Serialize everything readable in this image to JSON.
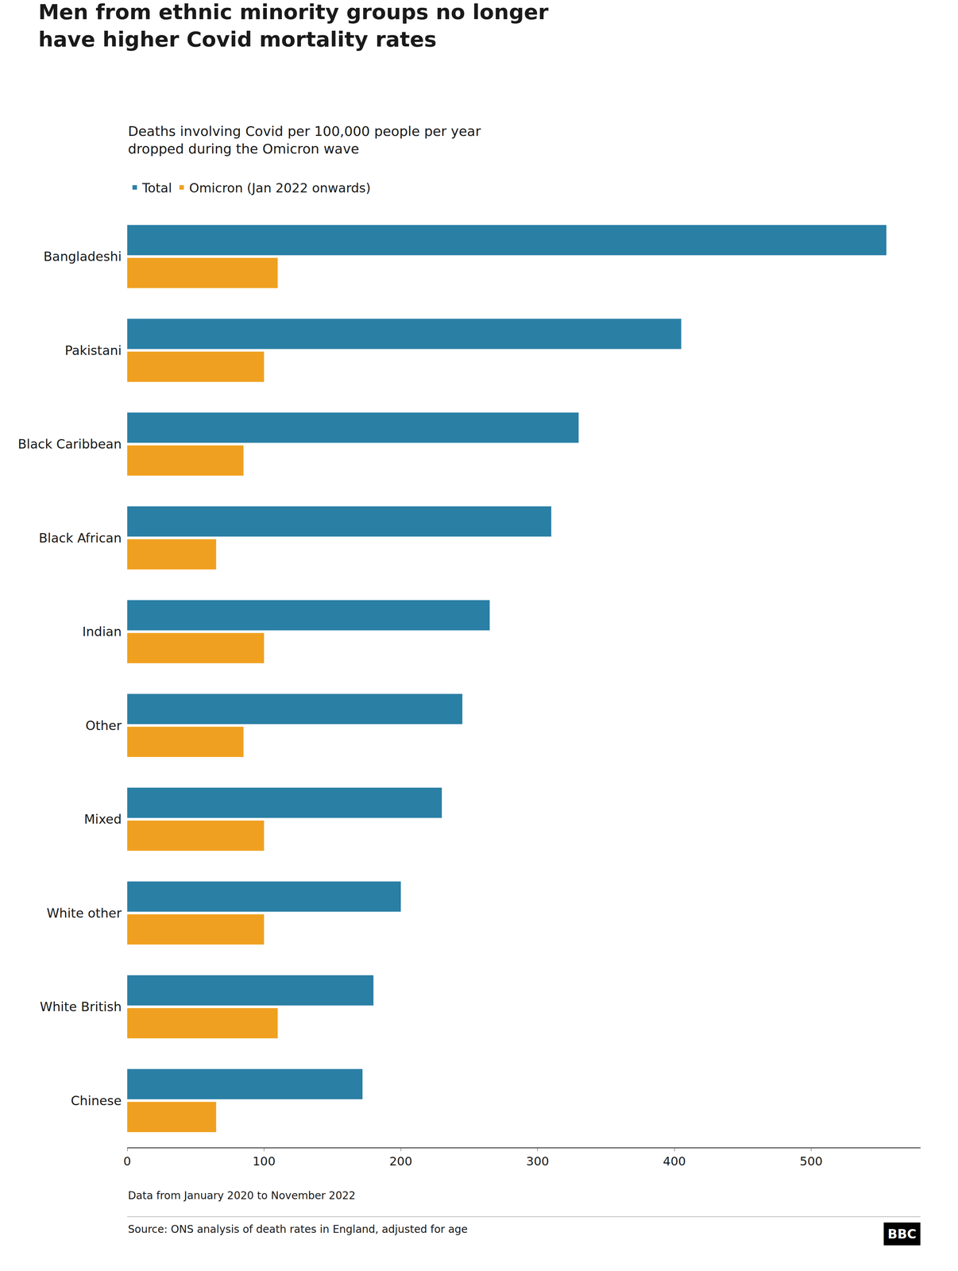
{
  "chart_data": {
    "type": "bar",
    "orientation": "horizontal",
    "title": "Men from ethnic minority groups no longer\nhave higher Covid mortality rates",
    "subtitle": "Deaths involving Covid per 100,000 people per year\ndropped during the Omicron wave",
    "categories": [
      "Bangladeshi",
      "Pakistani",
      "Black Caribbean",
      "Black African",
      "Indian",
      "Other",
      "Mixed",
      "White other",
      "White British",
      "Chinese"
    ],
    "series": [
      {
        "name": "Total",
        "color": "#2a7fa5",
        "values": [
          555,
          405,
          330,
          310,
          265,
          245,
          230,
          200,
          180,
          172
        ]
      },
      {
        "name": "Omicron (Jan 2022 onwards)",
        "color": "#f0a020",
        "values": [
          110,
          100,
          85,
          65,
          100,
          85,
          100,
          100,
          110,
          65
        ]
      }
    ],
    "xlim": [
      0,
      580
    ],
    "xticks": [
      0,
      100,
      200,
      300,
      400,
      500
    ],
    "grid": false,
    "legend": "upper left",
    "annotations": [
      "Data from January 2020 to November 2022",
      "Source: ONS analysis of death rates in England, adjusted for age",
      "BBC"
    ]
  }
}
